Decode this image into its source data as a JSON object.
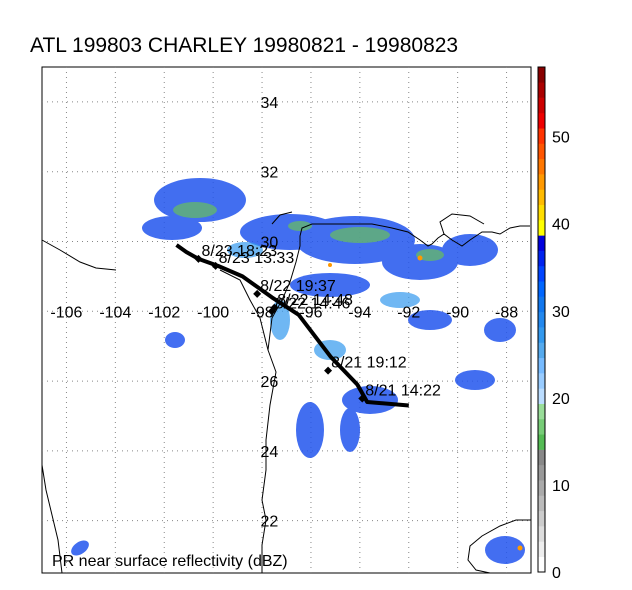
{
  "title": "ATL 199803 CHARLEY 19980821 - 19980823",
  "caption": "PR near surface reflectivity (dBZ)",
  "map": {
    "lon_range": [
      -107,
      -87
    ],
    "lat_range": [
      20.5,
      35
    ],
    "lon_ticks": [
      -106,
      -104,
      -102,
      -100,
      -98,
      -96,
      -94,
      -92,
      -90,
      -88
    ],
    "lon_tick_labels": [
      "-106",
      "-104",
      "-102",
      "-100",
      "-98",
      "-96",
      "-94",
      "-92",
      "-90",
      "-88"
    ],
    "lat_ticks": [
      34,
      32,
      30,
      28,
      26,
      24,
      22
    ],
    "lat_tick_labels": [
      "34",
      "32",
      "30",
      "28",
      "26",
      "24",
      "22"
    ],
    "grid": true,
    "grid_style": "dotted",
    "label_lon": -97.7
  },
  "track": {
    "points": [
      {
        "lon": -92.0,
        "lat": 25.3
      },
      {
        "lon": -93.7,
        "lat": 25.4
      },
      {
        "lon": -94.1,
        "lat": 25.9
      },
      {
        "lon": -95.2,
        "lat": 26.7
      },
      {
        "lon": -96.5,
        "lat": 27.9
      },
      {
        "lon": -97.6,
        "lat": 28.4
      },
      {
        "lon": -98.8,
        "lat": 29.0
      },
      {
        "lon": -99.8,
        "lat": 29.3
      },
      {
        "lon": -100.6,
        "lat": 29.5
      },
      {
        "lon": -101.1,
        "lat": 29.7
      },
      {
        "lon": -101.5,
        "lat": 29.9
      }
    ],
    "markers": [
      {
        "lon": -93.9,
        "lat": 25.5,
        "label": "8/21 14:22"
      },
      {
        "lon": -95.3,
        "lat": 26.3,
        "label": "8/21 19:12"
      },
      {
        "lon": -97.6,
        "lat": 28.0,
        "label": "8/22 14:46"
      },
      {
        "lon": -97.5,
        "lat": 28.1,
        "label": "8/22 14:48"
      },
      {
        "lon": -98.2,
        "lat": 28.5,
        "label": "8/22 19:37"
      },
      {
        "lon": -99.9,
        "lat": 29.3,
        "label": "8/23 13:33"
      },
      {
        "lon": -100.6,
        "lat": 29.5,
        "label": "8/23 18:23"
      }
    ]
  },
  "colorbar": {
    "min": 0,
    "max": 58,
    "ticks": [
      0,
      10,
      20,
      30,
      40,
      50
    ],
    "tick_labels": [
      "0",
      "10",
      "20",
      "30",
      "40",
      "50"
    ],
    "colors": [
      "#ffffff",
      "#eeeeee",
      "#dddddd",
      "#cccccc",
      "#bbbbbb",
      "#aaaaaa",
      "#999999",
      "#888888",
      "#55bb55",
      "#77cc77",
      "#99dd99",
      "#bbddff",
      "#99ccff",
      "#77bbff",
      "#55aaee",
      "#3399ee",
      "#2288ee",
      "#1177ee",
      "#0066ff",
      "#0044ff",
      "#0022ee",
      "#0000dd",
      "#ffff00",
      "#ffdd00",
      "#ffbb00",
      "#ff9900",
      "#ff7700",
      "#ff5500",
      "#ff3300",
      "#ee0000",
      "#cc0000",
      "#aa0000",
      "#880000"
    ]
  },
  "colors": {
    "track": "#000000",
    "coast": "#000000",
    "grid": "#888888"
  }
}
